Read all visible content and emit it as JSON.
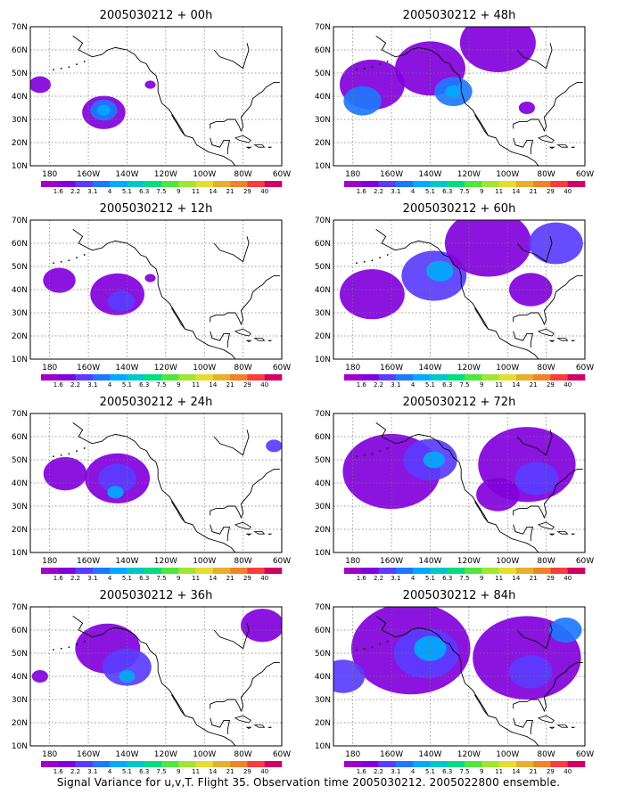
{
  "caption": "Signal Variance for u,v,T. Flight 35. Observation time 2005030212. 2005022800 ensemble.",
  "lat_labels": [
    "70N",
    "60N",
    "50N",
    "40N",
    "30N",
    "20N",
    "10N"
  ],
  "lon_labels": [
    "180",
    "160W",
    "140W",
    "120W",
    "100W",
    "80W",
    "60W"
  ],
  "lon_range": [
    -190,
    -60
  ],
  "lat_range": [
    10,
    70
  ],
  "colorbar": {
    "labels": [
      "1.6",
      "2.2",
      "3.1",
      "4",
      "5.1",
      "6.3",
      "7.5",
      "9",
      "11",
      "14",
      "21",
      "29",
      "40"
    ],
    "colors": [
      "#a000c8",
      "#8200dc",
      "#5a3cff",
      "#1e78ff",
      "#00aaff",
      "#00c8c8",
      "#00dc80",
      "#50e640",
      "#a0e632",
      "#e6dc32",
      "#e6af2d",
      "#f08228",
      "#fa3c3c",
      "#d20064"
    ]
  },
  "panels": [
    {
      "title": "2005030212 + 00h",
      "blobs": [
        {
          "lon": -185,
          "lat": 45,
          "r": 4,
          "lvl": 1
        },
        {
          "lon": -152,
          "lat": 33,
          "r": 8,
          "lvl": 1
        },
        {
          "lon": -152,
          "lat": 34,
          "r": 5,
          "lvl": 3
        },
        {
          "lon": -152,
          "lat": 34,
          "r": 2.5,
          "lvl": 4
        },
        {
          "lon": -128,
          "lat": 45,
          "r": 2,
          "lvl": 1
        }
      ]
    },
    {
      "title": "2005030212 + 48h",
      "blobs": [
        {
          "lon": -170,
          "lat": 45,
          "r": 12,
          "lvl": 1
        },
        {
          "lon": -175,
          "lat": 38,
          "r": 7,
          "lvl": 3
        },
        {
          "lon": -140,
          "lat": 52,
          "r": 13,
          "lvl": 1
        },
        {
          "lon": -128,
          "lat": 42,
          "r": 7,
          "lvl": 3
        },
        {
          "lon": -128,
          "lat": 42,
          "r": 3,
          "lvl": 4
        },
        {
          "lon": -105,
          "lat": 63,
          "r": 14,
          "lvl": 1
        },
        {
          "lon": -90,
          "lat": 35,
          "r": 3,
          "lvl": 1
        }
      ]
    },
    {
      "title": "2005030212 + 12h",
      "blobs": [
        {
          "lon": -175,
          "lat": 44,
          "r": 6,
          "lvl": 1
        },
        {
          "lon": -145,
          "lat": 38,
          "r": 10,
          "lvl": 1
        },
        {
          "lon": -143,
          "lat": 35,
          "r": 5,
          "lvl": 2
        },
        {
          "lon": -128,
          "lat": 45,
          "r": 2,
          "lvl": 1
        }
      ]
    },
    {
      "title": "2005030212 + 60h",
      "blobs": [
        {
          "lon": -170,
          "lat": 38,
          "r": 12,
          "lvl": 1
        },
        {
          "lon": -138,
          "lat": 46,
          "r": 12,
          "lvl": 2
        },
        {
          "lon": -135,
          "lat": 48,
          "r": 5,
          "lvl": 4
        },
        {
          "lon": -110,
          "lat": 60,
          "r": 16,
          "lvl": 1
        },
        {
          "lon": -75,
          "lat": 60,
          "r": 10,
          "lvl": 2
        },
        {
          "lon": -88,
          "lat": 40,
          "r": 8,
          "lvl": 1
        }
      ]
    },
    {
      "title": "2005030212 + 24h",
      "blobs": [
        {
          "lon": -172,
          "lat": 44,
          "r": 8,
          "lvl": 1
        },
        {
          "lon": -145,
          "lat": 42,
          "r": 12,
          "lvl": 1
        },
        {
          "lon": -145,
          "lat": 42,
          "r": 7,
          "lvl": 2
        },
        {
          "lon": -146,
          "lat": 36,
          "r": 3,
          "lvl": 4
        },
        {
          "lon": -64,
          "lat": 56,
          "r": 3,
          "lvl": 2
        }
      ]
    },
    {
      "title": "2005030212 + 72h",
      "blobs": [
        {
          "lon": -160,
          "lat": 45,
          "r": 18,
          "lvl": 1
        },
        {
          "lon": -140,
          "lat": 50,
          "r": 10,
          "lvl": 2
        },
        {
          "lon": -138,
          "lat": 50,
          "r": 4,
          "lvl": 4
        },
        {
          "lon": -90,
          "lat": 48,
          "r": 18,
          "lvl": 1
        },
        {
          "lon": -85,
          "lat": 42,
          "r": 8,
          "lvl": 2
        },
        {
          "lon": -105,
          "lat": 35,
          "r": 8,
          "lvl": 1
        }
      ]
    },
    {
      "title": "2005030212 + 36h",
      "blobs": [
        {
          "lon": -150,
          "lat": 52,
          "r": 12,
          "lvl": 1
        },
        {
          "lon": -140,
          "lat": 44,
          "r": 9,
          "lvl": 2
        },
        {
          "lon": -140,
          "lat": 40,
          "r": 3,
          "lvl": 4
        },
        {
          "lon": -185,
          "lat": 40,
          "r": 3,
          "lvl": 1
        },
        {
          "lon": -70,
          "lat": 62,
          "r": 8,
          "lvl": 1
        }
      ]
    },
    {
      "title": "2005030212 + 84h",
      "blobs": [
        {
          "lon": -150,
          "lat": 52,
          "r": 22,
          "lvl": 1
        },
        {
          "lon": -142,
          "lat": 50,
          "r": 12,
          "lvl": 2
        },
        {
          "lon": -140,
          "lat": 52,
          "r": 6,
          "lvl": 4
        },
        {
          "lon": -185,
          "lat": 40,
          "r": 8,
          "lvl": 2
        },
        {
          "lon": -90,
          "lat": 48,
          "r": 20,
          "lvl": 1
        },
        {
          "lon": -88,
          "lat": 42,
          "r": 8,
          "lvl": 2
        },
        {
          "lon": -70,
          "lat": 60,
          "r": 6,
          "lvl": 3
        }
      ]
    }
  ]
}
